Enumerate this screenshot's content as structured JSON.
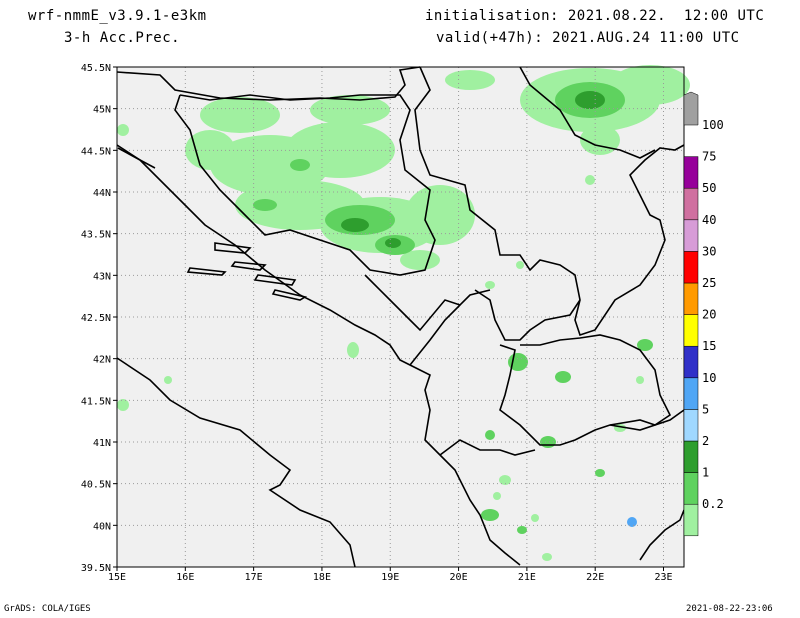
{
  "header": {
    "model": "wrf-nmmE_v3.9.1-e3km",
    "variable": "3-h Acc.Prec.",
    "init": "initialisation: 2021.08.22.  12:00 UTC",
    "valid": "valid(+47h): 2021.AUG.24 11:00 UTC"
  },
  "footer": {
    "left": "GrADS: COLA/IGES",
    "right": "2021-08-22-23:06"
  },
  "axes": {
    "lon_labels": [
      "15E",
      "16E",
      "17E",
      "18E",
      "19E",
      "20E",
      "21E",
      "22E",
      "23E"
    ],
    "lat_labels": [
      "45.5N",
      "45N",
      "44.5N",
      "44N",
      "43.5N",
      "43N",
      "42.5N",
      "42N",
      "41.5N",
      "41N",
      "40.5N",
      "40N",
      "39.5N"
    ]
  },
  "legend": {
    "levels": [
      "0.2",
      "1",
      "2",
      "5",
      "10",
      "15",
      "20",
      "25",
      "30",
      "40",
      "50",
      "75",
      "100"
    ],
    "colors": [
      "#a0f0a0",
      "#5fd25f",
      "#2e9e2e",
      "#a0d8ff",
      "#50a6f5",
      "#3030c8",
      "#ffff00",
      "#ff9a00",
      "#ff0000",
      "#d79cd7",
      "#d070a0",
      "#96009a",
      "#a0a0a0"
    ]
  },
  "map": {
    "land_color": "#f0f0f0",
    "grid": "dotted",
    "lon_range": [
      15,
      23.3
    ],
    "lat_range": [
      39.5,
      45.5
    ]
  }
}
